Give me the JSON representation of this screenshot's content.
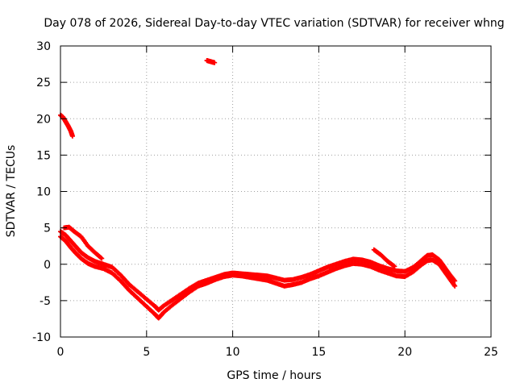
{
  "chart_data": {
    "type": "scatter",
    "title": "Day 078 of 2026, Sidereal Day-to-day VTEC variation (SDTVAR) for receiver whng",
    "xlabel": "GPS time / hours",
    "ylabel": "SDTVAR / TECUs",
    "xlim": [
      0,
      25
    ],
    "ylim": [
      -10,
      30
    ],
    "xticks": [
      0,
      5,
      10,
      15,
      20,
      25
    ],
    "yticks": [
      -10,
      -5,
      0,
      5,
      10,
      15,
      20,
      25,
      30
    ],
    "grid": true,
    "marker_color": "#ff0000",
    "series": [
      {
        "name": "main-track-upper",
        "x": [
          0.0,
          0.3,
          0.6,
          0.9,
          1.2,
          1.6,
          2.0,
          2.5,
          3.0,
          3.5,
          4.0,
          4.5,
          5.0,
          5.5,
          5.7,
          6.0,
          6.5,
          7.0,
          7.5,
          8.0,
          8.5,
          9.0,
          9.5,
          10.0,
          10.5,
          11.0,
          11.5,
          12.0,
          12.5,
          13.0,
          13.5,
          14.0,
          14.5,
          15.0,
          15.5,
          16.0,
          16.5,
          17.0,
          17.5,
          18.0,
          18.5,
          19.0,
          19.5,
          20.0,
          20.5,
          21.0,
          21.3,
          21.6,
          22.0,
          22.3,
          22.6,
          22.9
        ],
        "y": [
          4.5,
          4.0,
          3.2,
          2.4,
          1.6,
          0.9,
          0.4,
          0.0,
          -0.4,
          -1.5,
          -2.8,
          -3.8,
          -4.8,
          -5.8,
          -6.3,
          -5.7,
          -4.9,
          -4.1,
          -3.3,
          -2.6,
          -2.2,
          -1.8,
          -1.4,
          -1.2,
          -1.3,
          -1.4,
          -1.5,
          -1.6,
          -1.9,
          -2.2,
          -2.1,
          -1.8,
          -1.4,
          -0.9,
          -0.4,
          0.0,
          0.4,
          0.7,
          0.6,
          0.3,
          -0.2,
          -0.6,
          -0.9,
          -1.0,
          -0.4,
          0.6,
          1.2,
          1.3,
          0.6,
          -0.4,
          -1.4,
          -2.3
        ]
      },
      {
        "name": "main-track-lower",
        "x": [
          0.0,
          0.3,
          0.6,
          0.9,
          1.2,
          1.6,
          2.0,
          2.5,
          3.0,
          3.5,
          4.0,
          4.5,
          5.0,
          5.5,
          5.7,
          6.0,
          6.5,
          7.0,
          7.5,
          8.0,
          8.5,
          9.0,
          9.5,
          10.0,
          10.5,
          11.0,
          11.5,
          12.0,
          12.5,
          13.0,
          13.5,
          14.0,
          14.5,
          15.0,
          15.5,
          16.0,
          16.5,
          17.0,
          17.5,
          18.0,
          18.5,
          19.0,
          19.5,
          20.0,
          20.5,
          21.0,
          21.3,
          21.6,
          22.0,
          22.3,
          22.6,
          22.9
        ],
        "y": [
          3.8,
          3.2,
          2.3,
          1.5,
          0.8,
          0.1,
          -0.3,
          -0.6,
          -1.2,
          -2.3,
          -3.6,
          -4.7,
          -5.8,
          -6.9,
          -7.4,
          -6.6,
          -5.6,
          -4.7,
          -3.8,
          -3.0,
          -2.6,
          -2.1,
          -1.7,
          -1.5,
          -1.6,
          -1.8,
          -2.0,
          -2.2,
          -2.6,
          -3.0,
          -2.8,
          -2.5,
          -2.0,
          -1.6,
          -1.1,
          -0.6,
          -0.2,
          0.1,
          0.0,
          -0.3,
          -0.8,
          -1.2,
          -1.6,
          -1.7,
          -1.0,
          0.0,
          0.5,
          0.6,
          0.0,
          -1.0,
          -2.0,
          -3.0
        ]
      },
      {
        "name": "morning-branch",
        "x": [
          0.2,
          0.5,
          0.8,
          1.2,
          1.6,
          2.0,
          2.4
        ],
        "y": [
          5.0,
          5.1,
          4.5,
          3.8,
          2.5,
          1.6,
          0.8
        ]
      },
      {
        "name": "afternoon-branch",
        "x": [
          18.2,
          18.6,
          19.0,
          19.4
        ],
        "y": [
          2.0,
          1.3,
          0.4,
          -0.3
        ]
      },
      {
        "name": "outlier-early",
        "x": [
          0.0,
          0.15,
          0.3,
          0.45,
          0.6,
          0.7
        ],
        "y": [
          20.5,
          20.2,
          19.6,
          19.0,
          18.3,
          17.6
        ]
      },
      {
        "name": "outlier-high",
        "x": [
          8.5,
          8.65,
          8.8,
          8.95
        ],
        "y": [
          28.0,
          27.9,
          27.8,
          27.7
        ]
      }
    ]
  }
}
